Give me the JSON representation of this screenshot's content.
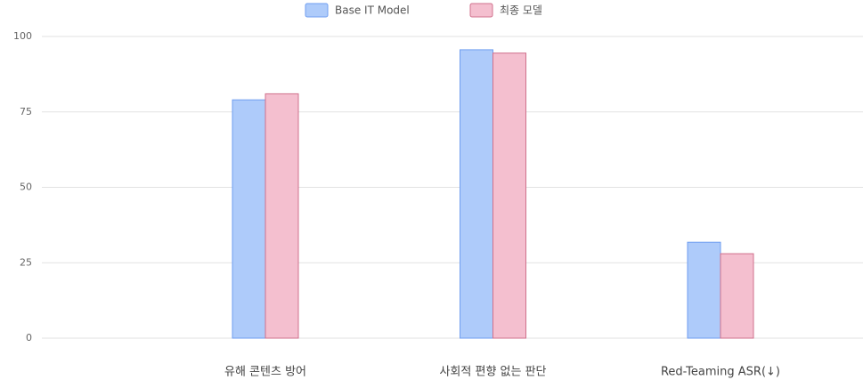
{
  "chart_data": {
    "type": "bar",
    "categories": [
      "유해 콘텐츠 방어",
      "사회적 편향 없는 판단",
      "Red-Teaming ASR(↓)"
    ],
    "series": [
      {
        "name": "Base IT Model",
        "color": "#aecbfa",
        "values": [
          79,
          95.6,
          31.8
        ]
      },
      {
        "name": "최종 모델",
        "color": "#f4bfcf",
        "values": [
          81,
          94.5,
          28
        ]
      }
    ],
    "ylim": [
      0,
      100
    ],
    "yticks": [
      0,
      25,
      50,
      75,
      100
    ],
    "grid": true,
    "legend": "top"
  }
}
